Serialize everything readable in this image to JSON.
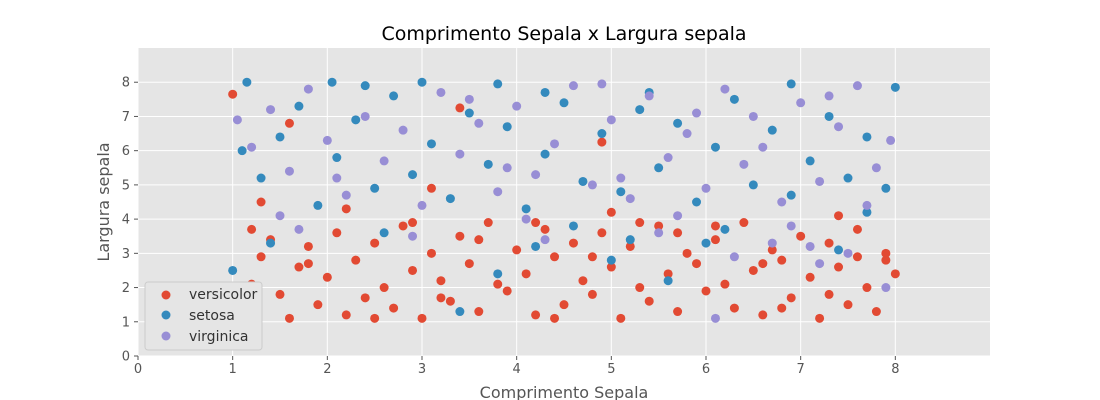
{
  "chart_data": {
    "type": "scatter",
    "title": "Comprimento Sepala x Largura sepala",
    "xlabel": "Comprimento Sepala",
    "ylabel": "Largura sepala",
    "xlim": [
      0,
      9
    ],
    "ylim": [
      0,
      9
    ],
    "xticks": [
      "0",
      "1",
      "2",
      "3",
      "4",
      "5",
      "6",
      "7",
      "8"
    ],
    "yticks": [
      "0",
      "1",
      "2",
      "3",
      "4",
      "5",
      "6",
      "7",
      "8"
    ],
    "grid": true,
    "legend_position": "lower-left",
    "series": [
      {
        "name": "versicolor",
        "color": "#E24A33",
        "points": [
          [
            1.0,
            7.65
          ],
          [
            3.4,
            7.25
          ],
          [
            4.9,
            6.25
          ],
          [
            1.3,
            4.5
          ],
          [
            2.2,
            4.3
          ],
          [
            3.1,
            4.9
          ],
          [
            4.2,
            3.9
          ],
          [
            5.0,
            4.2
          ],
          [
            6.1,
            3.8
          ],
          [
            7.4,
            4.1
          ],
          [
            7.9,
            2.8
          ],
          [
            1.6,
            6.8
          ],
          [
            1.1,
            1.3
          ],
          [
            1.2,
            2.1
          ],
          [
            1.3,
            2.9
          ],
          [
            1.4,
            3.4
          ],
          [
            1.5,
            1.8
          ],
          [
            1.6,
            1.1
          ],
          [
            1.7,
            2.6
          ],
          [
            1.8,
            3.2
          ],
          [
            1.9,
            1.5
          ],
          [
            2.0,
            2.3
          ],
          [
            2.1,
            3.6
          ],
          [
            2.2,
            1.2
          ],
          [
            2.3,
            2.8
          ],
          [
            2.4,
            1.7
          ],
          [
            2.5,
            3.3
          ],
          [
            2.6,
            2.0
          ],
          [
            2.7,
            1.4
          ],
          [
            2.8,
            3.8
          ],
          [
            2.9,
            2.5
          ],
          [
            3.0,
            1.1
          ],
          [
            3.1,
            3.0
          ],
          [
            3.2,
            2.2
          ],
          [
            3.3,
            1.6
          ],
          [
            3.4,
            3.5
          ],
          [
            3.5,
            2.7
          ],
          [
            3.6,
            1.3
          ],
          [
            3.7,
            3.9
          ],
          [
            3.8,
            2.1
          ],
          [
            3.9,
            1.9
          ],
          [
            4.0,
            3.1
          ],
          [
            4.1,
            2.4
          ],
          [
            4.2,
            1.2
          ],
          [
            4.3,
            3.7
          ],
          [
            4.4,
            2.9
          ],
          [
            4.5,
            1.5
          ],
          [
            4.6,
            3.3
          ],
          [
            4.7,
            2.2
          ],
          [
            4.8,
            1.8
          ],
          [
            4.9,
            3.6
          ],
          [
            5.0,
            2.6
          ],
          [
            5.1,
            1.1
          ],
          [
            5.2,
            3.2
          ],
          [
            5.3,
            2.0
          ],
          [
            5.4,
            1.6
          ],
          [
            5.5,
            3.8
          ],
          [
            5.6,
            2.4
          ],
          [
            5.7,
            1.3
          ],
          [
            5.8,
            3.0
          ],
          [
            5.9,
            2.7
          ],
          [
            6.0,
            1.9
          ],
          [
            6.1,
            3.4
          ],
          [
            6.2,
            2.1
          ],
          [
            6.3,
            1.4
          ],
          [
            6.4,
            3.9
          ],
          [
            6.5,
            2.5
          ],
          [
            6.6,
            1.2
          ],
          [
            6.7,
            3.1
          ],
          [
            6.8,
            2.8
          ],
          [
            6.9,
            1.7
          ],
          [
            7.0,
            3.5
          ],
          [
            7.1,
            2.3
          ],
          [
            7.2,
            1.1
          ],
          [
            7.3,
            3.3
          ],
          [
            7.4,
            2.6
          ],
          [
            7.5,
            1.5
          ],
          [
            7.6,
            3.7
          ],
          [
            7.7,
            2.0
          ],
          [
            7.8,
            1.3
          ],
          [
            7.9,
            3.0
          ],
          [
            8.0,
            2.4
          ],
          [
            1.2,
            3.7
          ],
          [
            2.5,
            1.1
          ],
          [
            3.6,
            3.4
          ],
          [
            4.8,
            2.9
          ],
          [
            5.7,
            3.6
          ],
          [
            6.8,
            1.4
          ],
          [
            7.6,
            2.9
          ],
          [
            2.9,
            3.9
          ],
          [
            4.4,
            1.1
          ],
          [
            5.3,
            3.9
          ],
          [
            6.6,
            2.7
          ],
          [
            7.3,
            1.8
          ],
          [
            1.8,
            2.7
          ],
          [
            3.2,
            1.7
          ]
        ]
      },
      {
        "name": "setosa",
        "color": "#348ABD",
        "points": [
          [
            1.15,
            8.0
          ],
          [
            2.05,
            8.0
          ],
          [
            3.0,
            8.0
          ],
          [
            3.8,
            7.95
          ],
          [
            4.3,
            7.7
          ],
          [
            5.4,
            7.7
          ],
          [
            6.9,
            7.95
          ],
          [
            8.0,
            7.85
          ],
          [
            1.1,
            6.0
          ],
          [
            1.3,
            5.2
          ],
          [
            1.5,
            6.4
          ],
          [
            1.7,
            7.3
          ],
          [
            1.9,
            4.4
          ],
          [
            2.1,
            5.8
          ],
          [
            2.3,
            6.9
          ],
          [
            2.5,
            4.9
          ],
          [
            2.7,
            7.6
          ],
          [
            2.9,
            5.3
          ],
          [
            3.1,
            6.2
          ],
          [
            3.3,
            4.6
          ],
          [
            3.5,
            7.1
          ],
          [
            3.7,
            5.6
          ],
          [
            3.9,
            6.7
          ],
          [
            4.1,
            4.3
          ],
          [
            4.3,
            5.9
          ],
          [
            4.5,
            7.4
          ],
          [
            4.7,
            5.1
          ],
          [
            4.9,
            6.5
          ],
          [
            5.1,
            4.8
          ],
          [
            5.3,
            7.2
          ],
          [
            5.5,
            5.5
          ],
          [
            5.7,
            6.8
          ],
          [
            5.9,
            4.5
          ],
          [
            6.1,
            6.1
          ],
          [
            6.3,
            7.5
          ],
          [
            6.5,
            5.0
          ],
          [
            6.7,
            6.6
          ],
          [
            6.9,
            4.7
          ],
          [
            7.1,
            5.7
          ],
          [
            7.3,
            7.0
          ],
          [
            7.5,
            5.2
          ],
          [
            7.7,
            6.4
          ],
          [
            7.9,
            4.9
          ],
          [
            1.4,
            3.3
          ],
          [
            2.6,
            3.6
          ],
          [
            4.2,
            3.2
          ],
          [
            5.2,
            3.4
          ],
          [
            6.2,
            3.7
          ],
          [
            7.4,
            3.1
          ],
          [
            3.8,
            2.4
          ],
          [
            5.6,
            2.2
          ],
          [
            1.0,
            2.5
          ],
          [
            2.4,
            7.9
          ],
          [
            4.6,
            3.8
          ],
          [
            6.0,
            3.3
          ],
          [
            7.7,
            4.2
          ],
          [
            3.4,
            1.3
          ],
          [
            5.0,
            2.8
          ]
        ]
      },
      {
        "name": "virginica",
        "color": "#988ED5",
        "points": [
          [
            1.05,
            6.9
          ],
          [
            1.2,
            6.1
          ],
          [
            1.4,
            7.2
          ],
          [
            1.6,
            5.4
          ],
          [
            1.8,
            7.8
          ],
          [
            2.0,
            6.3
          ],
          [
            2.2,
            4.7
          ],
          [
            2.4,
            7.0
          ],
          [
            2.6,
            5.7
          ],
          [
            2.8,
            6.6
          ],
          [
            3.0,
            4.4
          ],
          [
            3.2,
            7.7
          ],
          [
            3.4,
            5.9
          ],
          [
            3.6,
            6.8
          ],
          [
            3.8,
            4.8
          ],
          [
            4.0,
            7.3
          ],
          [
            4.2,
            5.3
          ],
          [
            4.4,
            6.2
          ],
          [
            4.6,
            7.9
          ],
          [
            4.8,
            5.0
          ],
          [
            5.0,
            6.9
          ],
          [
            5.2,
            4.6
          ],
          [
            5.4,
            7.6
          ],
          [
            5.6,
            5.8
          ],
          [
            5.8,
            6.5
          ],
          [
            6.0,
            4.9
          ],
          [
            6.2,
            7.8
          ],
          [
            6.4,
            5.6
          ],
          [
            6.6,
            6.1
          ],
          [
            6.8,
            4.5
          ],
          [
            7.0,
            7.4
          ],
          [
            7.2,
            5.1
          ],
          [
            7.4,
            6.7
          ],
          [
            7.6,
            7.9
          ],
          [
            7.8,
            5.5
          ],
          [
            7.95,
            6.3
          ],
          [
            1.5,
            4.1
          ],
          [
            2.9,
            3.5
          ],
          [
            4.1,
            4.0
          ],
          [
            5.5,
            3.6
          ],
          [
            6.3,
            2.9
          ],
          [
            6.9,
            3.8
          ],
          [
            7.5,
            3.0
          ],
          [
            7.9,
            2.0
          ],
          [
            6.1,
            1.1
          ],
          [
            6.7,
            3.3
          ],
          [
            7.2,
            2.7
          ],
          [
            3.5,
            7.5
          ],
          [
            4.9,
            7.95
          ],
          [
            5.9,
            7.1
          ],
          [
            6.5,
            7.0
          ],
          [
            7.3,
            7.6
          ],
          [
            2.1,
            5.2
          ],
          [
            3.9,
            5.5
          ],
          [
            5.1,
            5.2
          ],
          [
            7.7,
            4.4
          ],
          [
            1.7,
            3.7
          ],
          [
            4.3,
            3.4
          ],
          [
            5.7,
            4.1
          ],
          [
            7.1,
            3.2
          ]
        ]
      }
    ]
  }
}
